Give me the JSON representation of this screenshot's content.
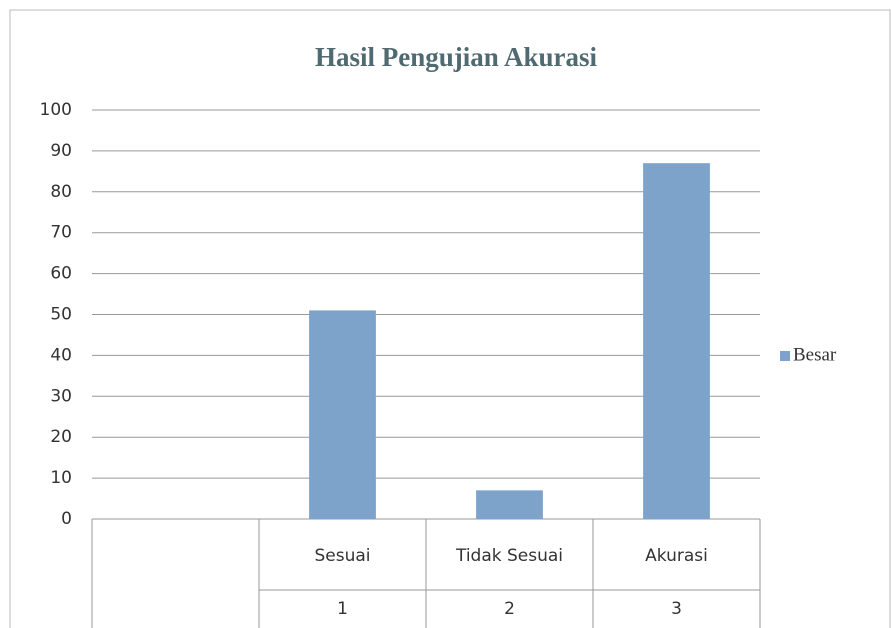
{
  "chart_data": {
    "type": "bar",
    "title": "Hasil Pengujian Akurasi",
    "categories": [
      null,
      "Sesuai",
      "Tidak Sesuai",
      "Akurasi"
    ],
    "sublabels": [
      null,
      "1",
      "2",
      "3"
    ],
    "series": [
      {
        "name": "Besar",
        "color": "#7ea3cb",
        "values": [
          null,
          51,
          7,
          87
        ]
      }
    ],
    "ylim": [
      0,
      100
    ],
    "yticks": [
      0,
      10,
      20,
      30,
      40,
      50,
      60,
      70,
      80,
      90,
      100
    ],
    "grid": true,
    "legend": "right"
  }
}
